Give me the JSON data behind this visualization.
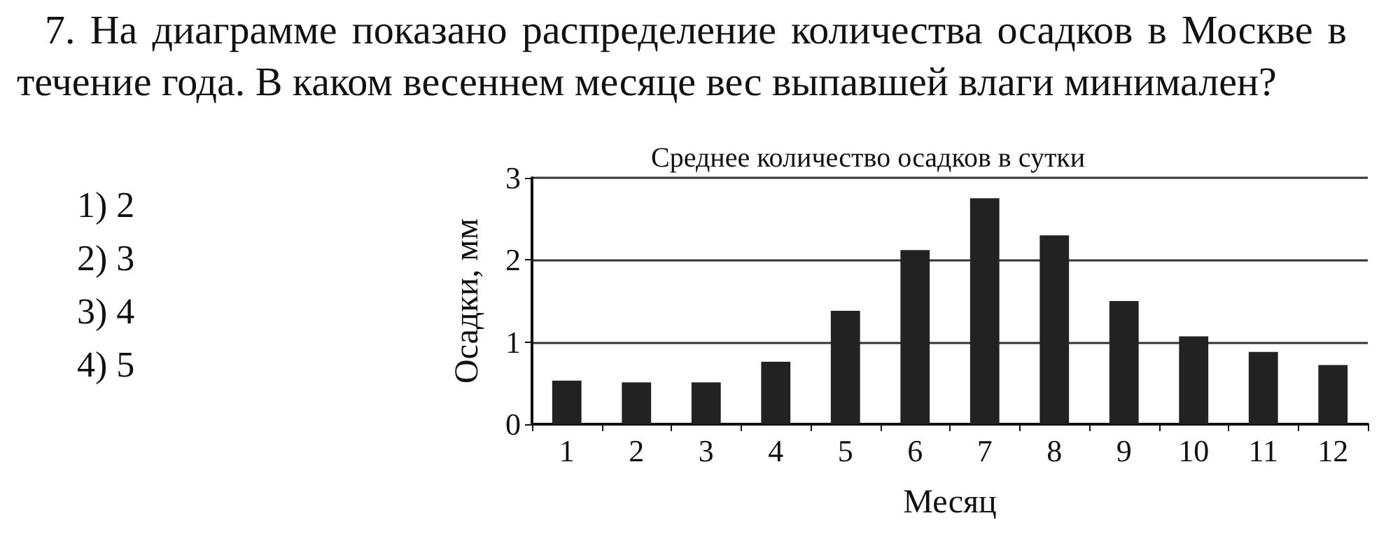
{
  "chart_data": {
    "type": "bar",
    "title": "Среднее количество осадков в сутки",
    "xlabel": "Месяц",
    "ylabel": "Осадки, мм",
    "categories": [
      "1",
      "2",
      "3",
      "4",
      "5",
      "6",
      "7",
      "8",
      "9",
      "10",
      "11",
      "12"
    ],
    "values": [
      0.53,
      0.51,
      0.51,
      0.76,
      1.38,
      2.12,
      2.75,
      2.3,
      1.5,
      1.07,
      0.88,
      0.72
    ],
    "color": "#222222",
    "ylim": [
      0,
      3
    ],
    "yticks": [
      0,
      1,
      2,
      3
    ],
    "grid": "y",
    "annotations": [
      "7. На диаграмме показано распределение количества осадков в Москве в течение года. В каком весеннем месяце вес выпавшей влаги минимален?",
      "1) 2",
      "2) 3",
      "3) 4",
      "4) 5"
    ]
  }
}
